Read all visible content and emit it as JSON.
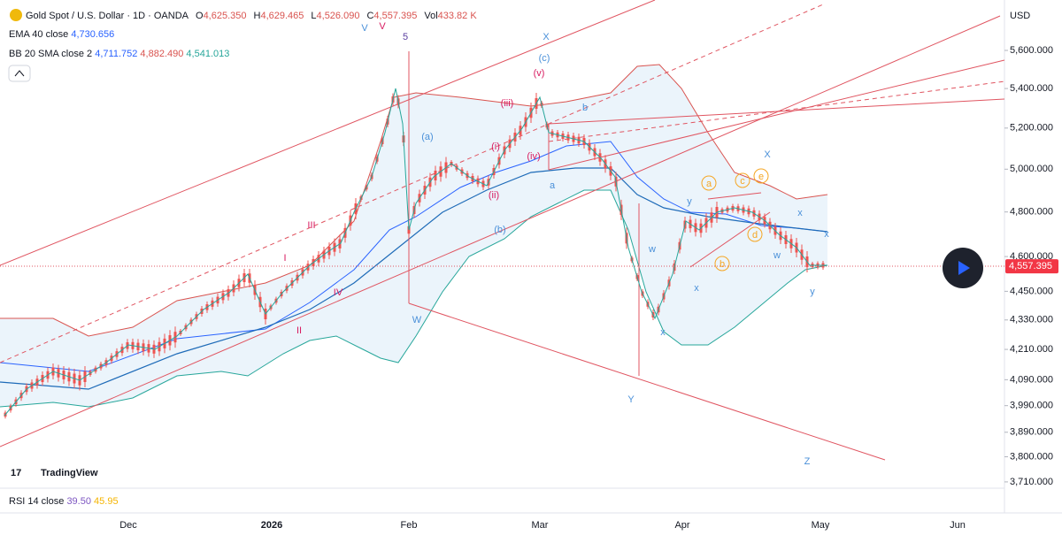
{
  "header": {
    "symbol": "Gold Spot / U.S. Dollar · 1D · OANDA",
    "ohlc": [
      {
        "key": "O",
        "value": "4,625.350"
      },
      {
        "key": "H",
        "value": "4,629.465"
      },
      {
        "key": "L",
        "value": "4,526.090"
      },
      {
        "key": "C",
        "value": "4,557.395"
      }
    ],
    "vol_key": "Vol",
    "vol": "433.82 K"
  },
  "indicators": {
    "ema": {
      "label": "EMA 40 close",
      "value": "4,730.656"
    },
    "bb": {
      "label": "BB 20 SMA close 2",
      "values": [
        "4,711.752",
        "4,882.490",
        "4,541.013"
      ]
    },
    "rsi": {
      "label": "RSI 14 close",
      "values": [
        "39.50",
        "45.95"
      ]
    }
  },
  "price_axis": {
    "currency": "USD",
    "ticks": [
      {
        "value": 5600,
        "label": "5,600.000"
      },
      {
        "value": 5400,
        "label": "5,400.000"
      },
      {
        "value": 5200,
        "label": "5,200.000"
      },
      {
        "value": 5000,
        "label": "5,000.000"
      },
      {
        "value": 4800,
        "label": "4,800.000"
      },
      {
        "value": 4600,
        "label": "4,600.000"
      },
      {
        "value": 4450,
        "label": "4,450.000"
      },
      {
        "value": 4330,
        "label": "4,330.000"
      },
      {
        "value": 4210,
        "label": "4,210.000"
      },
      {
        "value": 4090,
        "label": "4,090.000"
      },
      {
        "value": 3990,
        "label": "3,990.000"
      },
      {
        "value": 3890,
        "label": "3,890.000"
      },
      {
        "value": 3800,
        "label": "3,800.000"
      },
      {
        "value": 3710,
        "label": "3,710.000"
      }
    ],
    "last_price": {
      "value": 4557.395,
      "label": "4,557.395"
    }
  },
  "time_axis": [
    "Dec",
    "2026",
    "Feb",
    "Mar",
    "Apr",
    "May",
    "Jun"
  ],
  "wave_labels": [
    "V",
    "V",
    "5",
    "X",
    "(c)",
    "(v)",
    "(iii)",
    "(i)",
    "(ii)",
    "(iv)",
    "(a)",
    "(b)",
    "b",
    "a",
    "III",
    "I",
    "IV",
    "II",
    "W",
    "Y",
    "Z",
    "w",
    "x",
    "y",
    "x",
    "X",
    "x",
    "w",
    "y",
    "x"
  ],
  "circled_labels": [
    "a",
    "b",
    "c",
    "d",
    "e"
  ],
  "logo": "TradingView"
}
